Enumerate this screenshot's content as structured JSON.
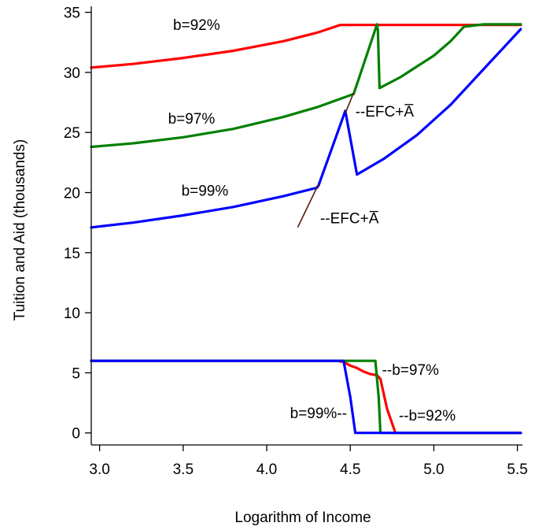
{
  "chart_data": {
    "type": "line",
    "xlabel": "Logarithm of Income",
    "ylabel": "Tuition and Aid (thousands)",
    "xlim": [
      2.95,
      5.53
    ],
    "ylim": [
      -1.0,
      35.5
    ],
    "xticks": [
      "3.0",
      "3.5",
      "4.0",
      "4.5",
      "5.0",
      "5.5"
    ],
    "yticks": [
      "0",
      "5",
      "10",
      "15",
      "20",
      "25",
      "30",
      "35"
    ],
    "grid": false,
    "series": [
      {
        "name": "b=92%",
        "color": "#ff0000",
        "group": "tuition",
        "x": [
          2.95,
          3.2,
          3.5,
          3.8,
          4.1,
          4.3,
          4.44,
          4.6,
          5.0,
          5.52
        ],
        "y": [
          30.4,
          30.7,
          31.2,
          31.8,
          32.6,
          33.3,
          33.95,
          33.95,
          33.95,
          33.95
        ]
      },
      {
        "name": "b=97%",
        "color": "#008000",
        "group": "tuition",
        "x": [
          2.95,
          3.2,
          3.5,
          3.8,
          4.1,
          4.3,
          4.46,
          4.52,
          4.66,
          4.665,
          4.675,
          4.8,
          5.0,
          5.1,
          5.18,
          5.3,
          5.52
        ],
        "y": [
          23.8,
          24.1,
          24.6,
          25.3,
          26.3,
          27.1,
          27.9,
          28.2,
          34.0,
          33.5,
          28.7,
          29.6,
          31.4,
          32.6,
          33.8,
          34.0,
          34.0
        ]
      },
      {
        "name": "b=99%",
        "color": "#0000ff",
        "group": "tuition",
        "x": [
          2.95,
          3.2,
          3.5,
          3.8,
          4.1,
          4.3,
          4.31,
          4.47,
          4.54,
          4.7,
          4.9,
          5.1,
          5.3,
          5.52
        ],
        "y": [
          17.1,
          17.5,
          18.1,
          18.8,
          19.7,
          20.4,
          20.6,
          26.8,
          21.5,
          22.8,
          24.8,
          27.3,
          30.3,
          33.6
        ]
      },
      {
        "name": "b=92%",
        "color": "#ff0000",
        "group": "aid",
        "x": [
          2.95,
          4.42,
          4.46,
          4.5,
          4.54,
          4.58,
          4.62,
          4.66,
          4.68,
          4.72,
          4.77,
          5.52
        ],
        "y": [
          6.0,
          6.0,
          5.9,
          5.6,
          5.4,
          5.1,
          4.9,
          4.8,
          4.5,
          2.0,
          0.0,
          0.0
        ]
      },
      {
        "name": "b=97%",
        "color": "#008000",
        "group": "aid",
        "x": [
          2.95,
          4.65,
          4.67,
          4.68,
          5.52
        ],
        "y": [
          6.0,
          6.0,
          3.0,
          0.0,
          0.0
        ]
      },
      {
        "name": "b=99%",
        "color": "#0000ff",
        "group": "aid",
        "x": [
          2.95,
          4.46,
          4.5,
          4.53,
          5.52
        ],
        "y": [
          6.0,
          6.0,
          3.0,
          0.0,
          0.0
        ]
      }
    ],
    "efc_lines": [
      {
        "color": "#5a1a0a",
        "x": [
          4.185,
          4.31
        ],
        "y": [
          17.1,
          20.7
        ]
      },
      {
        "color": "#5a1a0a",
        "x": [
          4.47,
          4.52
        ],
        "y": [
          26.6,
          28.3
        ]
      }
    ],
    "annotations": [
      {
        "text": "b=92%",
        "x": 3.58,
        "y": 34.0,
        "anchor": "middle"
      },
      {
        "text": "b=97%",
        "x": 3.55,
        "y": 26.2,
        "anchor": "middle"
      },
      {
        "text": "b=99%",
        "x": 3.63,
        "y": 20.2,
        "anchor": "middle"
      },
      {
        "text": "--EFC+A",
        "x": 4.53,
        "y": 26.8,
        "anchor": "start",
        "overbar_last": true
      },
      {
        "text": "--EFC+A",
        "x": 4.32,
        "y": 17.9,
        "anchor": "start",
        "overbar_last": true
      },
      {
        "text": "--b=97%",
        "x": 4.69,
        "y": 5.3,
        "anchor": "start"
      },
      {
        "text": "b=99%--",
        "x": 4.48,
        "y": 1.7,
        "anchor": "end"
      },
      {
        "text": "--b=92%",
        "x": 4.79,
        "y": 1.5,
        "anchor": "start"
      }
    ]
  }
}
